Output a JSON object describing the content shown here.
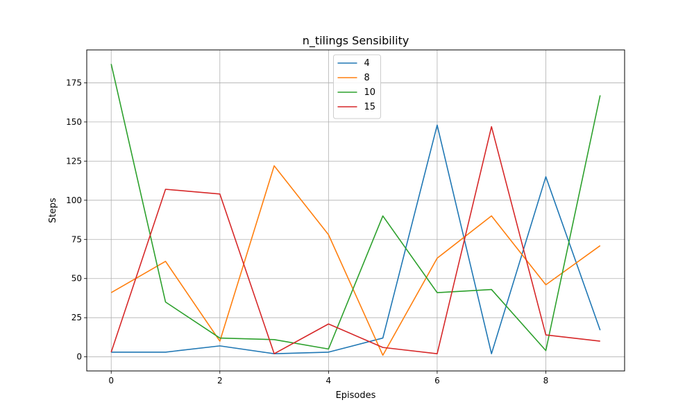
{
  "chart_data": {
    "type": "line",
    "title": "n_tilings Sensibility",
    "xlabel": "Episodes",
    "ylabel": "Steps",
    "x": [
      0,
      1,
      2,
      3,
      4,
      5,
      6,
      7,
      8,
      9
    ],
    "xlim": [
      -0.45,
      9.45
    ],
    "ylim": [
      -9,
      196
    ],
    "xticks": [
      0,
      2,
      4,
      6,
      8
    ],
    "yticks": [
      0,
      25,
      50,
      75,
      100,
      125,
      150,
      175
    ],
    "grid": true,
    "legend_position": "upper center",
    "series": [
      {
        "name": "4",
        "color": "#1f77b4",
        "values": [
          3,
          3,
          7,
          2,
          3,
          12,
          148,
          2,
          115,
          17
        ]
      },
      {
        "name": "8",
        "color": "#ff7f0e",
        "values": [
          41,
          61,
          10,
          122,
          78,
          1,
          63,
          90,
          46,
          71
        ]
      },
      {
        "name": "10",
        "color": "#2ca02c",
        "values": [
          187,
          35,
          12,
          11,
          5,
          90,
          41,
          43,
          4,
          167
        ]
      },
      {
        "name": "15",
        "color": "#d62728",
        "values": [
          3,
          107,
          104,
          2,
          21,
          6,
          2,
          147,
          14,
          10
        ]
      }
    ]
  }
}
